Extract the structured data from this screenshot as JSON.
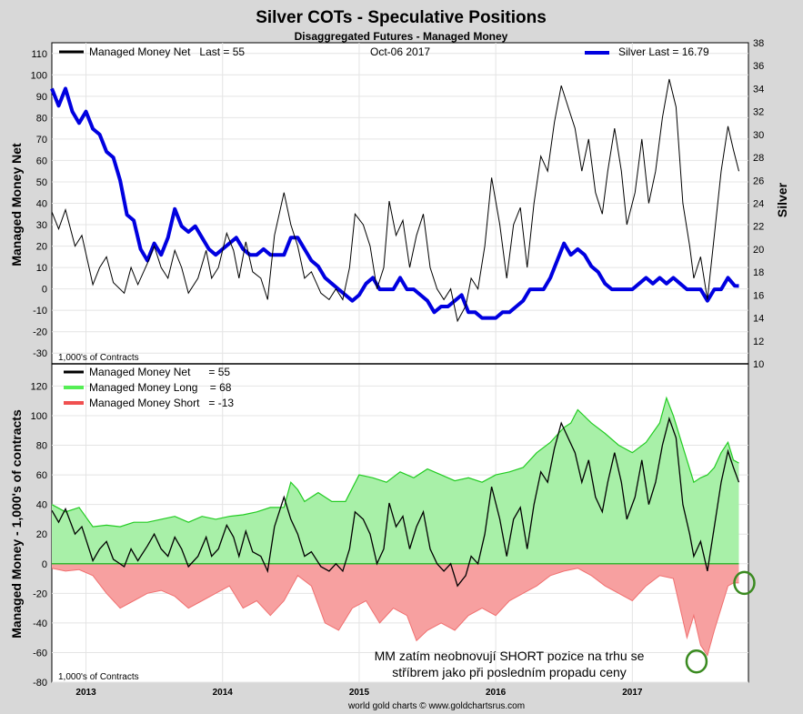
{
  "title": "Silver COTs - Speculative Positions",
  "subtitle": "Disaggregated Futures - Managed Money",
  "footer": "world gold charts © www.goldchartsrus.com",
  "annotation": [
    "MM zatím neobnovují SHORT pozice na trhu se",
    "stříbrem jako při posledním propadu ceny"
  ],
  "colors": {
    "net": "#000000",
    "silver": "#0000e0",
    "long_fill": "#a8f0a8",
    "long_line": "#22cc22",
    "short_fill": "#f7a0a0",
    "short_line": "#f07070",
    "highlight": "#3a8a20"
  },
  "chart_data": [
    {
      "type": "line",
      "title": "",
      "legend": {
        "net": "Managed Money Net   Last = 55",
        "date": "Oct-06  2017",
        "silver": "Silver Last = 16.79",
        "placement": "top"
      },
      "ylabel": "Managed Money Net",
      "y2label": "Silver",
      "unit_note": "1,000's of Contracts",
      "ylim": [
        -35,
        115
      ],
      "y_ticks": [
        -30,
        -20,
        -10,
        0,
        10,
        20,
        30,
        40,
        50,
        60,
        70,
        80,
        90,
        100,
        110
      ],
      "y2lim": [
        10,
        38
      ],
      "y2_ticks": [
        10,
        12,
        14,
        16,
        18,
        20,
        22,
        24,
        26,
        28,
        30,
        32,
        34,
        36,
        38
      ],
      "xlim": [
        2012.75,
        2017.85
      ],
      "x_ticks": [
        2013,
        2014,
        2015,
        2016,
        2017
      ],
      "grid": true,
      "series": [
        {
          "key": "net",
          "name": "Managed Money Net",
          "axis": "left",
          "x": [
            2012.75,
            2012.8,
            2012.85,
            2012.92,
            2012.97,
            2013.05,
            2013.1,
            2013.15,
            2013.2,
            2013.28,
            2013.33,
            2013.38,
            2013.45,
            2013.5,
            2013.55,
            2013.6,
            2013.65,
            2013.7,
            2013.75,
            2013.82,
            2013.88,
            2013.92,
            2013.97,
            2014.03,
            2014.08,
            2014.12,
            2014.17,
            2014.22,
            2014.28,
            2014.33,
            2014.38,
            2014.45,
            2014.5,
            2014.55,
            2014.6,
            2014.65,
            2014.72,
            2014.78,
            2014.83,
            2014.88,
            2014.93,
            2014.97,
            2015.03,
            2015.08,
            2015.13,
            2015.18,
            2015.22,
            2015.27,
            2015.32,
            2015.37,
            2015.42,
            2015.47,
            2015.52,
            2015.57,
            2015.62,
            2015.67,
            2015.72,
            2015.78,
            2015.82,
            2015.87,
            2015.92,
            2015.97,
            2016.03,
            2016.08,
            2016.13,
            2016.18,
            2016.23,
            2016.28,
            2016.33,
            2016.38,
            2016.43,
            2016.48,
            2016.53,
            2016.58,
            2016.63,
            2016.68,
            2016.73,
            2016.78,
            2016.82,
            2016.87,
            2016.92,
            2016.96,
            2017.02,
            2017.07,
            2017.12,
            2017.17,
            2017.22,
            2017.27,
            2017.32,
            2017.37,
            2017.42,
            2017.45,
            2017.5,
            2017.55,
            2017.6,
            2017.65,
            2017.7,
            2017.74,
            2017.78
          ],
          "values": [
            36,
            28,
            37,
            20,
            25,
            2,
            10,
            15,
            3,
            -2,
            10,
            2,
            12,
            20,
            10,
            5,
            18,
            10,
            -2,
            5,
            18,
            5,
            10,
            26,
            18,
            5,
            22,
            8,
            5,
            -5,
            25,
            45,
            30,
            20,
            5,
            8,
            -2,
            -5,
            0,
            -5,
            10,
            35,
            30,
            20,
            0,
            10,
            41,
            25,
            32,
            10,
            25,
            35,
            10,
            0,
            -5,
            0,
            -15,
            -8,
            5,
            0,
            20,
            52,
            30,
            5,
            30,
            38,
            10,
            40,
            62,
            55,
            78,
            95,
            85,
            75,
            55,
            70,
            45,
            35,
            55,
            75,
            55,
            30,
            45,
            70,
            40,
            55,
            80,
            98,
            85,
            40,
            20,
            5,
            15,
            -5,
            25,
            55,
            76,
            65,
            55
          ]
        },
        {
          "key": "silver",
          "name": "Silver",
          "axis": "right",
          "x": [
            2012.75,
            2012.8,
            2012.85,
            2012.9,
            2012.95,
            2013.0,
            2013.05,
            2013.1,
            2013.15,
            2013.2,
            2013.25,
            2013.3,
            2013.35,
            2013.4,
            2013.45,
            2013.5,
            2013.55,
            2013.6,
            2013.65,
            2013.7,
            2013.75,
            2013.8,
            2013.85,
            2013.9,
            2013.95,
            2014.0,
            2014.05,
            2014.1,
            2014.15,
            2014.2,
            2014.25,
            2014.3,
            2014.35,
            2014.4,
            2014.45,
            2014.5,
            2014.55,
            2014.6,
            2014.65,
            2014.7,
            2014.75,
            2014.8,
            2014.85,
            2014.9,
            2014.95,
            2015.0,
            2015.05,
            2015.1,
            2015.15,
            2015.2,
            2015.25,
            2015.3,
            2015.35,
            2015.4,
            2015.45,
            2015.5,
            2015.55,
            2015.6,
            2015.65,
            2015.7,
            2015.75,
            2015.8,
            2015.85,
            2015.9,
            2015.95,
            2016.0,
            2016.05,
            2016.1,
            2016.15,
            2016.2,
            2016.25,
            2016.3,
            2016.35,
            2016.4,
            2016.45,
            2016.5,
            2016.55,
            2016.6,
            2016.65,
            2016.7,
            2016.75,
            2016.8,
            2016.85,
            2016.9,
            2016.95,
            2017.0,
            2017.05,
            2017.1,
            2017.15,
            2017.2,
            2017.25,
            2017.3,
            2017.35,
            2017.4,
            2017.45,
            2017.5,
            2017.55,
            2017.6,
            2017.65,
            2017.7,
            2017.75,
            2017.78
          ],
          "values": [
            34,
            32.5,
            34,
            32,
            31,
            32,
            30.5,
            30,
            28.5,
            28,
            26,
            23,
            22.5,
            20,
            19,
            20.5,
            19.5,
            21,
            23.5,
            22,
            21.5,
            22,
            21,
            20,
            19.5,
            20,
            20.5,
            21,
            20,
            19.5,
            19.5,
            20,
            19.5,
            19.5,
            19.5,
            21,
            21,
            20,
            19,
            18.5,
            17.5,
            17,
            16.5,
            16,
            15.5,
            16,
            17,
            17.5,
            16.5,
            16.5,
            16.5,
            17.5,
            16.5,
            16.5,
            16,
            15.5,
            14.5,
            15,
            15,
            15.5,
            16,
            14.5,
            14.5,
            14,
            14,
            14,
            14.5,
            14.5,
            15,
            15.5,
            16.5,
            16.5,
            16.5,
            17.5,
            19,
            20.5,
            19.5,
            20,
            19.5,
            18.5,
            18,
            17,
            16.5,
            16.5,
            16.5,
            16.5,
            17,
            17.5,
            17,
            17.5,
            17,
            17.5,
            17,
            16.5,
            16.5,
            16.5,
            15.5,
            16.5,
            16.5,
            17.5,
            16.8,
            16.79
          ]
        }
      ]
    },
    {
      "type": "area",
      "title": "",
      "legend": {
        "net": "Managed Money Net      = 55",
        "long": "Managed Money Long    = 68",
        "short": "Managed Money Short   = -13",
        "placement": "top-left"
      },
      "ylabel": "Managed Money - 1,000's of contracts",
      "unit_note": "1,000's of Contracts",
      "ylim": [
        -80,
        135
      ],
      "y_ticks": [
        -80,
        -60,
        -40,
        -20,
        0,
        20,
        40,
        60,
        80,
        100,
        120
      ],
      "xlim": [
        2012.75,
        2017.85
      ],
      "x_ticks": [
        2013,
        2014,
        2015,
        2016,
        2017
      ],
      "grid": true,
      "series": [
        {
          "key": "long",
          "name": "Managed Money Long",
          "x": [
            2012.75,
            2012.85,
            2012.95,
            2013.05,
            2013.15,
            2013.25,
            2013.35,
            2013.45,
            2013.55,
            2013.65,
            2013.75,
            2013.85,
            2013.95,
            2014.05,
            2014.15,
            2014.25,
            2014.35,
            2014.45,
            2014.5,
            2014.55,
            2014.6,
            2014.7,
            2014.8,
            2014.9,
            2015.0,
            2015.1,
            2015.2,
            2015.3,
            2015.4,
            2015.5,
            2015.6,
            2015.7,
            2015.8,
            2015.9,
            2016.0,
            2016.1,
            2016.2,
            2016.3,
            2016.4,
            2016.5,
            2016.55,
            2016.6,
            2016.7,
            2016.8,
            2016.9,
            2017.0,
            2017.1,
            2017.2,
            2017.25,
            2017.3,
            2017.4,
            2017.45,
            2017.5,
            2017.55,
            2017.6,
            2017.65,
            2017.7,
            2017.74,
            2017.78
          ],
          "values": [
            40,
            35,
            38,
            25,
            26,
            25,
            28,
            28,
            30,
            32,
            28,
            32,
            30,
            32,
            33,
            35,
            38,
            38,
            55,
            50,
            42,
            48,
            42,
            42,
            60,
            58,
            55,
            62,
            58,
            64,
            60,
            56,
            58,
            55,
            60,
            62,
            65,
            75,
            82,
            92,
            95,
            104,
            95,
            88,
            80,
            75,
            82,
            95,
            112,
            100,
            70,
            55,
            58,
            60,
            65,
            75,
            82,
            70,
            68
          ]
        },
        {
          "key": "short",
          "name": "Managed Money Short",
          "x": [
            2012.75,
            2012.85,
            2012.95,
            2013.05,
            2013.15,
            2013.25,
            2013.35,
            2013.45,
            2013.55,
            2013.65,
            2013.75,
            2013.85,
            2013.95,
            2014.05,
            2014.15,
            2014.25,
            2014.35,
            2014.45,
            2014.55,
            2014.65,
            2014.75,
            2014.85,
            2014.95,
            2015.05,
            2015.15,
            2015.25,
            2015.35,
            2015.42,
            2015.5,
            2015.6,
            2015.7,
            2015.8,
            2015.9,
            2016.0,
            2016.1,
            2016.2,
            2016.3,
            2016.4,
            2016.5,
            2016.6,
            2016.7,
            2016.8,
            2016.9,
            2017.0,
            2017.1,
            2017.2,
            2017.3,
            2017.35,
            2017.4,
            2017.45,
            2017.5,
            2017.55,
            2017.6,
            2017.65,
            2017.7,
            2017.74,
            2017.78
          ],
          "values": [
            -3,
            -5,
            -4,
            -8,
            -20,
            -30,
            -25,
            -20,
            -18,
            -22,
            -30,
            -25,
            -20,
            -15,
            -30,
            -25,
            -35,
            -25,
            -8,
            -15,
            -40,
            -45,
            -30,
            -25,
            -40,
            -30,
            -35,
            -52,
            -45,
            -40,
            -45,
            -35,
            -30,
            -35,
            -25,
            -20,
            -15,
            -8,
            -5,
            -3,
            -8,
            -15,
            -20,
            -25,
            -15,
            -8,
            -10,
            -30,
            -50,
            -35,
            -55,
            -62,
            -45,
            -30,
            -15,
            -13,
            -13
          ]
        },
        {
          "key": "net",
          "name": "Managed Money Net",
          "x": [
            2012.75,
            2012.8,
            2012.85,
            2012.92,
            2012.97,
            2013.05,
            2013.1,
            2013.15,
            2013.2,
            2013.28,
            2013.33,
            2013.38,
            2013.45,
            2013.5,
            2013.55,
            2013.6,
            2013.65,
            2013.7,
            2013.75,
            2013.82,
            2013.88,
            2013.92,
            2013.97,
            2014.03,
            2014.08,
            2014.12,
            2014.17,
            2014.22,
            2014.28,
            2014.33,
            2014.38,
            2014.45,
            2014.5,
            2014.55,
            2014.6,
            2014.65,
            2014.72,
            2014.78,
            2014.83,
            2014.88,
            2014.93,
            2014.97,
            2015.03,
            2015.08,
            2015.13,
            2015.18,
            2015.22,
            2015.27,
            2015.32,
            2015.37,
            2015.42,
            2015.47,
            2015.52,
            2015.57,
            2015.62,
            2015.67,
            2015.72,
            2015.78,
            2015.82,
            2015.87,
            2015.92,
            2015.97,
            2016.03,
            2016.08,
            2016.13,
            2016.18,
            2016.23,
            2016.28,
            2016.33,
            2016.38,
            2016.43,
            2016.48,
            2016.53,
            2016.58,
            2016.63,
            2016.68,
            2016.73,
            2016.78,
            2016.82,
            2016.87,
            2016.92,
            2016.96,
            2017.02,
            2017.07,
            2017.12,
            2017.17,
            2017.22,
            2017.27,
            2017.32,
            2017.37,
            2017.42,
            2017.45,
            2017.5,
            2017.55,
            2017.6,
            2017.65,
            2017.7,
            2017.74,
            2017.78
          ],
          "values": [
            36,
            28,
            37,
            20,
            25,
            2,
            10,
            15,
            3,
            -2,
            10,
            2,
            12,
            20,
            10,
            5,
            18,
            10,
            -2,
            5,
            18,
            5,
            10,
            26,
            18,
            5,
            22,
            8,
            5,
            -5,
            25,
            45,
            30,
            20,
            5,
            8,
            -2,
            -5,
            0,
            -5,
            10,
            35,
            30,
            20,
            0,
            10,
            41,
            25,
            32,
            10,
            25,
            35,
            10,
            0,
            -5,
            0,
            -15,
            -8,
            5,
            0,
            20,
            52,
            30,
            5,
            30,
            38,
            10,
            40,
            62,
            55,
            78,
            95,
            85,
            75,
            55,
            70,
            45,
            35,
            55,
            75,
            55,
            30,
            45,
            70,
            40,
            55,
            80,
            98,
            85,
            40,
            20,
            5,
            15,
            -5,
            25,
            55,
            76,
            65,
            55
          ]
        }
      ],
      "highlights": [
        {
          "x": 2017.47,
          "y": -66
        },
        {
          "x": 2017.82,
          "y": -13
        }
      ]
    }
  ]
}
